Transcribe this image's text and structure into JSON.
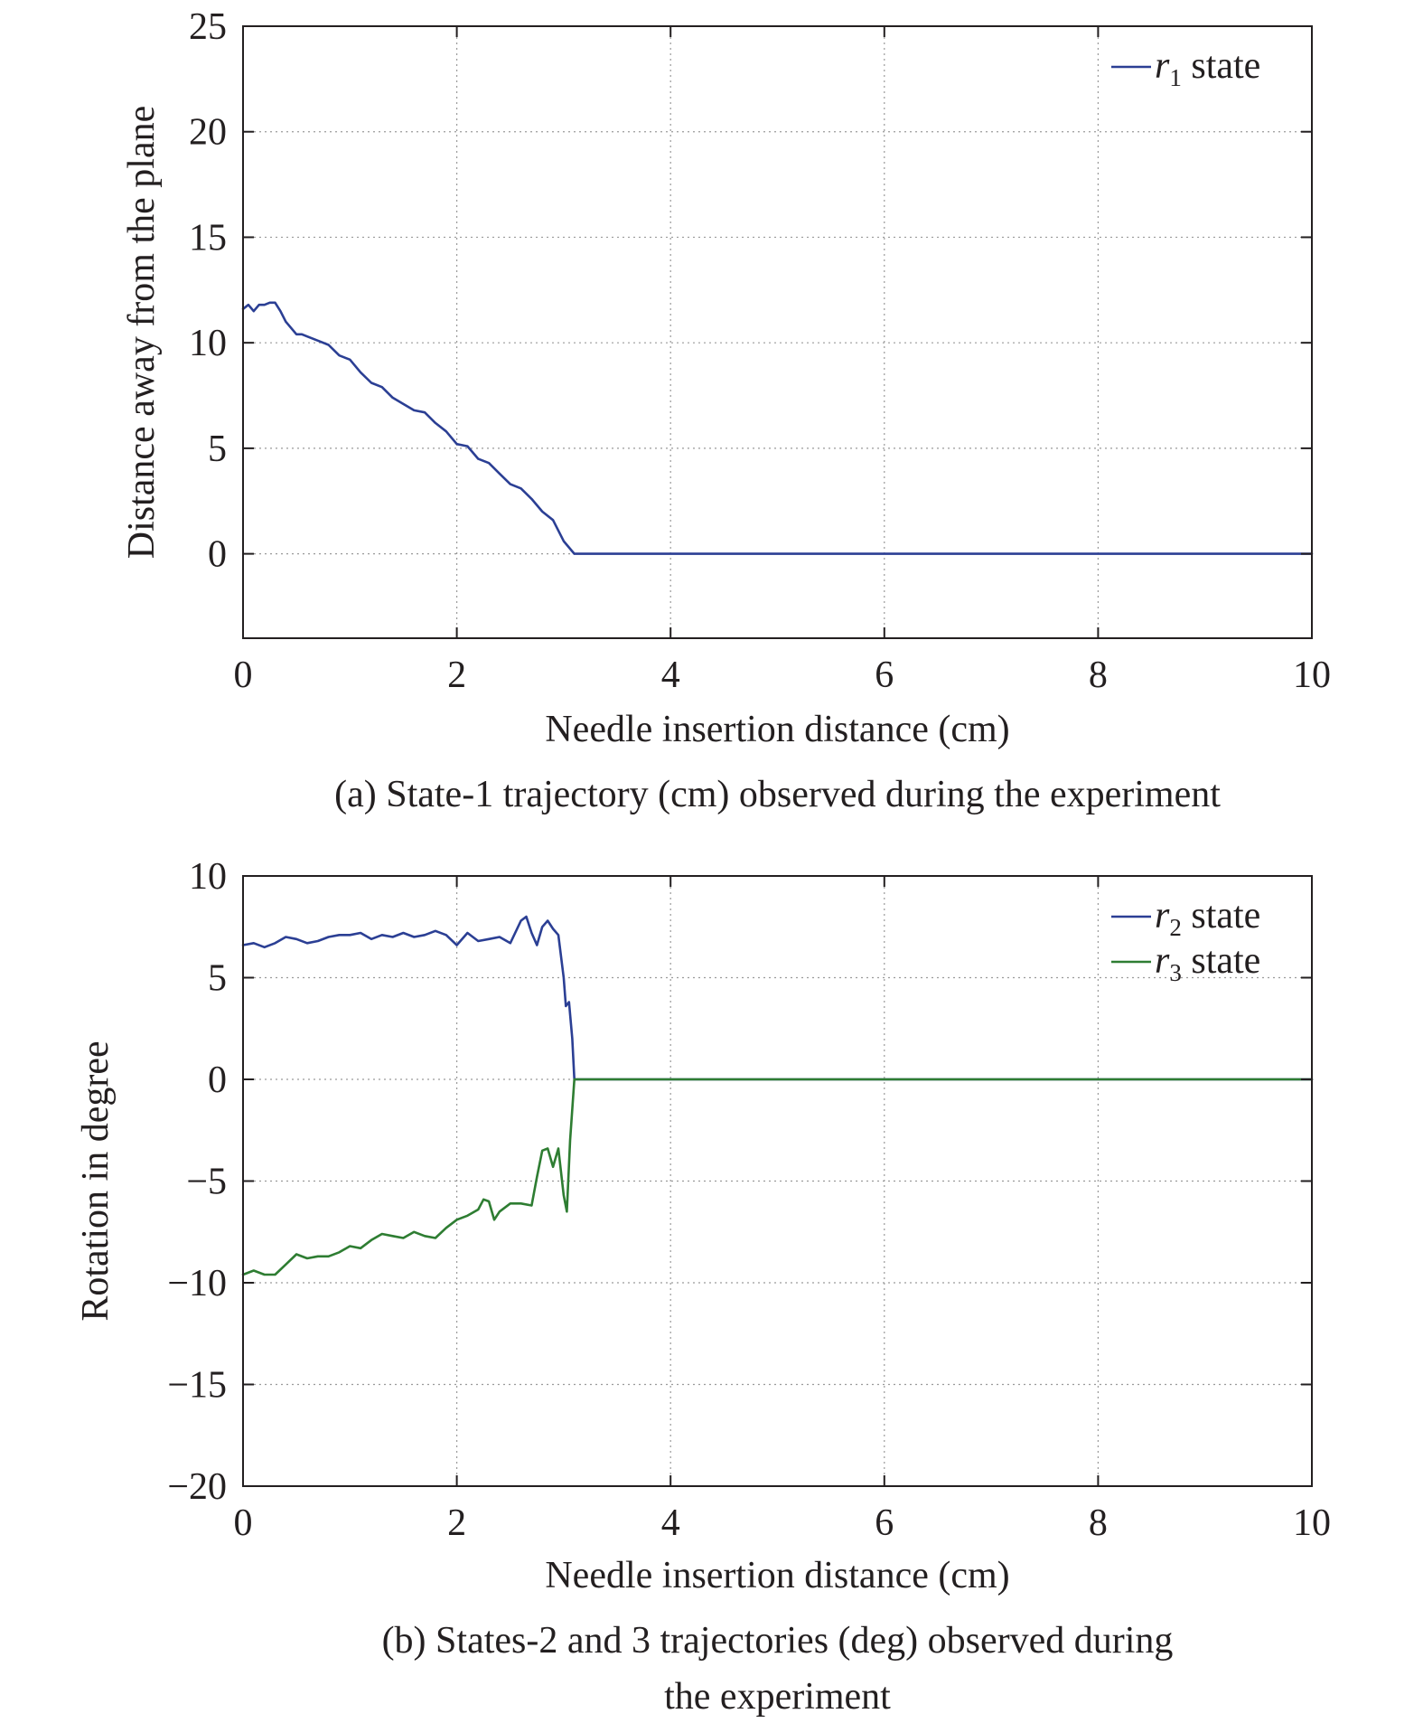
{
  "chart_data": [
    {
      "type": "line",
      "caption": "(a) State-1 trajectory (cm) observed during the experiment",
      "title": "",
      "xlabel": "Needle insertion distance (cm)",
      "ylabel": "Distance away from the plane",
      "xlim": [
        0,
        10
      ],
      "ylim": [
        -4,
        25
      ],
      "xticks": [
        "0",
        "2",
        "4",
        "6",
        "8",
        "10"
      ],
      "yticks": [
        "0",
        "5",
        "10",
        "15",
        "20",
        "25"
      ],
      "xtick_values": [
        0,
        2,
        4,
        6,
        8,
        10
      ],
      "ytick_values": [
        0,
        5,
        10,
        15,
        20,
        25
      ],
      "grid": true,
      "legend_position": "top-right",
      "series": [
        {
          "name": "r1 state",
          "legend_symbol": "r",
          "legend_subscript": "1",
          "legend_suffix": " state",
          "color": "#2b3f94",
          "x": [
            0,
            0.05,
            0.1,
            0.15,
            0.2,
            0.25,
            0.3,
            0.35,
            0.4,
            0.45,
            0.5,
            0.55,
            0.6,
            0.7,
            0.8,
            0.9,
            1.0,
            1.1,
            1.2,
            1.3,
            1.4,
            1.5,
            1.6,
            1.7,
            1.8,
            1.9,
            2.0,
            2.1,
            2.2,
            2.3,
            2.4,
            2.5,
            2.6,
            2.7,
            2.8,
            2.9,
            3.0,
            3.05,
            3.1,
            4.0,
            5.0,
            6.0,
            7.0,
            8.0,
            9.0,
            10.0
          ],
          "y": [
            11.6,
            11.8,
            11.5,
            11.8,
            11.8,
            11.9,
            11.9,
            11.5,
            11.0,
            10.7,
            10.4,
            10.4,
            10.3,
            10.1,
            9.9,
            9.4,
            9.2,
            8.6,
            8.1,
            7.9,
            7.4,
            7.1,
            6.8,
            6.7,
            6.2,
            5.8,
            5.2,
            5.1,
            4.5,
            4.3,
            3.8,
            3.3,
            3.1,
            2.6,
            2.0,
            1.6,
            0.6,
            0.3,
            0,
            0,
            0,
            0,
            0,
            0,
            0,
            0
          ]
        }
      ]
    },
    {
      "type": "line",
      "caption": "(b) States-2 and 3 trajectories (deg) observed during the experiment",
      "caption_lines": [
        "(b) States-2 and 3 trajectories (deg) observed during",
        "the experiment"
      ],
      "title": "",
      "xlabel": "Needle insertion distance (cm)",
      "ylabel": "Rotation in degree",
      "xlim": [
        0,
        10
      ],
      "ylim": [
        -20,
        10
      ],
      "xticks": [
        "0",
        "2",
        "4",
        "6",
        "8",
        "10"
      ],
      "yticks": [
        "10",
        "5",
        "0",
        "−5",
        "−10",
        "−15",
        "−20"
      ],
      "xtick_values": [
        0,
        2,
        4,
        6,
        8,
        10
      ],
      "ytick_values": [
        10,
        5,
        0,
        -5,
        -10,
        -15,
        -20
      ],
      "grid": true,
      "legend_position": "top-right",
      "series": [
        {
          "name": "r2 state",
          "legend_symbol": "r",
          "legend_subscript": "2",
          "legend_suffix": " state",
          "color": "#2b3f94",
          "x": [
            0,
            0.1,
            0.2,
            0.3,
            0.4,
            0.5,
            0.6,
            0.7,
            0.8,
            0.9,
            1.0,
            1.1,
            1.2,
            1.3,
            1.4,
            1.5,
            1.6,
            1.7,
            1.8,
            1.9,
            2.0,
            2.1,
            2.2,
            2.3,
            2.4,
            2.5,
            2.6,
            2.65,
            2.7,
            2.75,
            2.8,
            2.85,
            2.9,
            2.95,
            3.0,
            3.02,
            3.05,
            3.08,
            3.1,
            4.0,
            5.0,
            6.0,
            7.0,
            8.0,
            9.0,
            10.0
          ],
          "y": [
            6.6,
            6.7,
            6.5,
            6.7,
            7.0,
            6.9,
            6.7,
            6.8,
            7.0,
            7.1,
            7.1,
            7.2,
            6.9,
            7.1,
            7.0,
            7.2,
            7.0,
            7.1,
            7.3,
            7.1,
            6.6,
            7.2,
            6.8,
            6.9,
            7.0,
            6.7,
            7.8,
            8.0,
            7.2,
            6.6,
            7.5,
            7.8,
            7.4,
            7.1,
            5.0,
            3.6,
            3.8,
            2.0,
            0,
            0,
            0,
            0,
            0,
            0,
            0,
            0
          ]
        },
        {
          "name": "r3 state",
          "legend_symbol": "r",
          "legend_subscript": "3",
          "legend_suffix": " state",
          "color": "#2e7d32",
          "x": [
            0,
            0.1,
            0.2,
            0.3,
            0.4,
            0.5,
            0.6,
            0.7,
            0.8,
            0.9,
            1.0,
            1.1,
            1.2,
            1.3,
            1.4,
            1.5,
            1.6,
            1.7,
            1.8,
            1.9,
            2.0,
            2.1,
            2.2,
            2.25,
            2.3,
            2.35,
            2.4,
            2.5,
            2.6,
            2.7,
            2.75,
            2.8,
            2.85,
            2.9,
            2.95,
            3.0,
            3.03,
            3.06,
            3.1,
            4.0,
            5.0,
            6.0,
            7.0,
            8.0,
            9.0,
            10.0
          ],
          "y": [
            -9.6,
            -9.4,
            -9.6,
            -9.6,
            -9.1,
            -8.6,
            -8.8,
            -8.7,
            -8.7,
            -8.5,
            -8.2,
            -8.3,
            -7.9,
            -7.6,
            -7.7,
            -7.8,
            -7.5,
            -7.7,
            -7.8,
            -7.3,
            -6.9,
            -6.7,
            -6.4,
            -5.9,
            -6.0,
            -6.9,
            -6.5,
            -6.1,
            -6.1,
            -6.2,
            -4.8,
            -3.5,
            -3.4,
            -4.3,
            -3.4,
            -5.7,
            -6.5,
            -3.0,
            0,
            0,
            0,
            0,
            0,
            0,
            0,
            0
          ]
        }
      ]
    }
  ]
}
